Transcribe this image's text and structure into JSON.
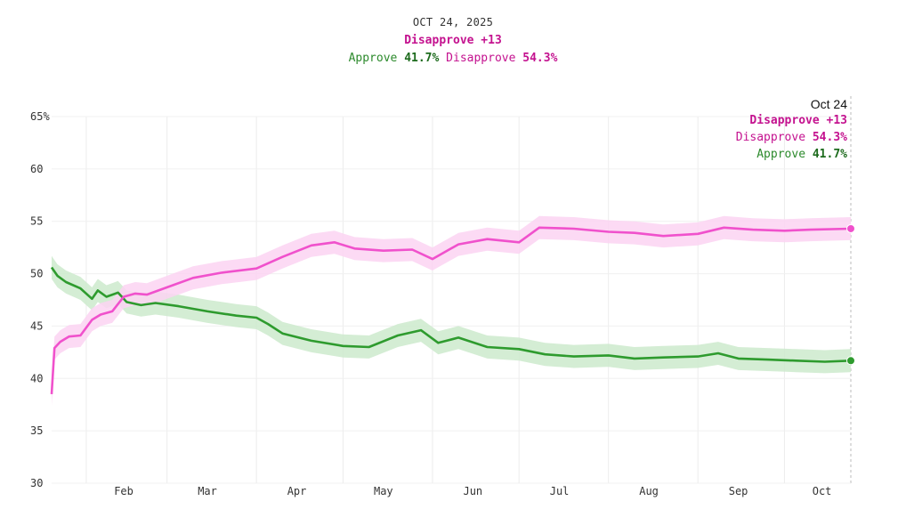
{
  "header": {
    "date": "OCT 24, 2025",
    "margin_label": "Disapprove +13",
    "approve_label": "Approve",
    "approve_value": "41.7%",
    "disapprove_label": "Disapprove",
    "disapprove_value": "54.3%"
  },
  "tooltip": {
    "date": "Oct 24",
    "margin_label": "Disapprove +13",
    "disapprove_label": "Disapprove",
    "disapprove_value": "54.3%",
    "approve_label": "Approve",
    "approve_value": "41.7%"
  },
  "chart_data": {
    "type": "line",
    "y_ticks": [
      "65%",
      "60",
      "55",
      "50",
      "45",
      "40",
      "35",
      "30"
    ],
    "ylim": [
      30,
      65
    ],
    "x_ticks": [
      "Feb",
      "Mar",
      "Apr",
      "May",
      "Jun",
      "Jul",
      "Aug",
      "Sep",
      "Oct"
    ],
    "grid": true,
    "series": [
      {
        "name": "Approve",
        "color": "#2e9b2e",
        "band_color": "#cdeacd",
        "points": [
          [
            "2025-01-20",
            50.6
          ],
          [
            "2025-01-22",
            49.8
          ],
          [
            "2025-01-25",
            49.2
          ],
          [
            "2025-01-30",
            48.6
          ],
          [
            "2025-02-03",
            47.6
          ],
          [
            "2025-02-05",
            48.4
          ],
          [
            "2025-02-08",
            47.8
          ],
          [
            "2025-02-12",
            48.2
          ],
          [
            "2025-02-15",
            47.3
          ],
          [
            "2025-02-20",
            47.0
          ],
          [
            "2025-02-25",
            47.2
          ],
          [
            "2025-03-05",
            46.9
          ],
          [
            "2025-03-15",
            46.4
          ],
          [
            "2025-03-25",
            46.0
          ],
          [
            "2025-04-01",
            45.8
          ],
          [
            "2025-04-05",
            45.2
          ],
          [
            "2025-04-10",
            44.3
          ],
          [
            "2025-04-20",
            43.6
          ],
          [
            "2025-05-01",
            43.1
          ],
          [
            "2025-05-10",
            43.0
          ],
          [
            "2025-05-20",
            44.1
          ],
          [
            "2025-05-28",
            44.6
          ],
          [
            "2025-06-03",
            43.4
          ],
          [
            "2025-06-10",
            43.9
          ],
          [
            "2025-06-20",
            43.0
          ],
          [
            "2025-07-01",
            42.8
          ],
          [
            "2025-07-10",
            42.3
          ],
          [
            "2025-07-20",
            42.1
          ],
          [
            "2025-08-01",
            42.2
          ],
          [
            "2025-08-10",
            41.9
          ],
          [
            "2025-08-20",
            42.0
          ],
          [
            "2025-09-01",
            42.1
          ],
          [
            "2025-09-08",
            42.4
          ],
          [
            "2025-09-15",
            41.9
          ],
          [
            "2025-09-25",
            41.8
          ],
          [
            "2025-10-05",
            41.7
          ],
          [
            "2025-10-15",
            41.6
          ],
          [
            "2025-10-24",
            41.7
          ]
        ]
      },
      {
        "name": "Disapprove",
        "color": "#f051cc",
        "band_color": "#fbd3f2",
        "points": [
          [
            "2025-01-20",
            38.5
          ],
          [
            "2025-01-21",
            42.9
          ],
          [
            "2025-01-23",
            43.5
          ],
          [
            "2025-01-26",
            44.0
          ],
          [
            "2025-01-30",
            44.1
          ],
          [
            "2025-02-03",
            45.6
          ],
          [
            "2025-02-06",
            46.1
          ],
          [
            "2025-02-10",
            46.4
          ],
          [
            "2025-02-14",
            47.8
          ],
          [
            "2025-02-18",
            48.1
          ],
          [
            "2025-02-22",
            48.0
          ],
          [
            "2025-03-01",
            48.7
          ],
          [
            "2025-03-10",
            49.6
          ],
          [
            "2025-03-20",
            50.1
          ],
          [
            "2025-04-01",
            50.5
          ],
          [
            "2025-04-10",
            51.6
          ],
          [
            "2025-04-20",
            52.7
          ],
          [
            "2025-04-28",
            53.0
          ],
          [
            "2025-05-05",
            52.4
          ],
          [
            "2025-05-15",
            52.2
          ],
          [
            "2025-05-25",
            52.3
          ],
          [
            "2025-06-01",
            51.4
          ],
          [
            "2025-06-10",
            52.8
          ],
          [
            "2025-06-20",
            53.3
          ],
          [
            "2025-07-01",
            53.0
          ],
          [
            "2025-07-08",
            54.4
          ],
          [
            "2025-07-20",
            54.3
          ],
          [
            "2025-08-01",
            54.0
          ],
          [
            "2025-08-10",
            53.9
          ],
          [
            "2025-08-20",
            53.6
          ],
          [
            "2025-09-01",
            53.8
          ],
          [
            "2025-09-10",
            54.4
          ],
          [
            "2025-09-20",
            54.2
          ],
          [
            "2025-10-01",
            54.1
          ],
          [
            "2025-10-10",
            54.2
          ],
          [
            "2025-10-24",
            54.3
          ]
        ]
      }
    ]
  }
}
